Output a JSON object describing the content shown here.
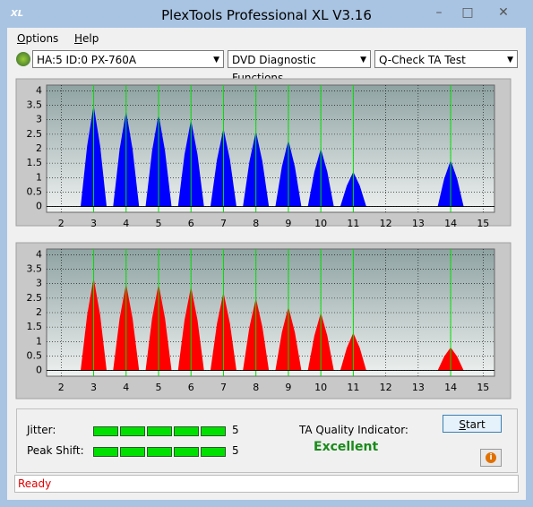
{
  "window": {
    "title": "PlexTools Professional XL V3.16",
    "icon": "XL"
  },
  "menu": [
    "Options",
    "Help"
  ],
  "toolbar": {
    "drive": "HA:5 ID:0  PX-760A",
    "function": "DVD Diagnostic Functions",
    "test": "Q-Check TA Test"
  },
  "chart_data": [
    {
      "type": "area",
      "color": "#0000ff",
      "x": [
        2.6,
        2.8,
        3,
        3.2,
        3.4,
        3.6,
        3.8,
        4,
        4.2,
        4.4,
        4.6,
        4.8,
        5,
        5.2,
        5.4,
        5.6,
        5.8,
        6,
        6.2,
        6.4,
        6.6,
        6.8,
        7,
        7.2,
        7.4,
        7.6,
        7.8,
        8,
        8.2,
        8.4,
        8.6,
        8.8,
        9,
        9.2,
        9.4,
        9.6,
        9.8,
        10,
        10.2,
        10.4,
        10.6,
        10.8,
        11,
        11.2,
        11.4,
        13.6,
        13.8,
        14,
        14.2,
        14.4
      ],
      "values": [
        0,
        2.1,
        3.5,
        2.1,
        0,
        0,
        1.98,
        3.3,
        1.98,
        0,
        0,
        1.92,
        3.2,
        1.92,
        0,
        0,
        1.8,
        3.0,
        1.8,
        0,
        0,
        1.62,
        2.7,
        1.62,
        0,
        0,
        1.56,
        2.6,
        1.56,
        0,
        0,
        1.38,
        2.3,
        1.38,
        0,
        0,
        1.2,
        2.0,
        1.2,
        0,
        0,
        0.72,
        1.2,
        0.72,
        0,
        0,
        0.96,
        1.6,
        0.96,
        0
      ],
      "xlim": [
        1.55,
        15.35
      ],
      "ylim": [
        -0.2,
        4.2
      ],
      "xticks": [
        2,
        3,
        4,
        5,
        6,
        7,
        8,
        9,
        10,
        11,
        12,
        13,
        14,
        15
      ],
      "yticks": [
        0,
        0.5,
        1,
        1.5,
        2,
        2.5,
        3,
        3.5,
        4
      ],
      "markers": [
        3,
        4,
        5,
        6,
        7,
        8,
        9,
        10,
        11,
        14
      ],
      "marker_color": "#00e000",
      "grid": true
    },
    {
      "type": "area",
      "color": "#ff0000",
      "x": [
        2.6,
        2.8,
        3,
        3.2,
        3.4,
        3.6,
        3.8,
        4,
        4.2,
        4.4,
        4.6,
        4.8,
        5,
        5.2,
        5.4,
        5.6,
        5.8,
        6,
        6.2,
        6.4,
        6.6,
        6.8,
        7,
        7.2,
        7.4,
        7.6,
        7.8,
        8,
        8.2,
        8.4,
        8.6,
        8.8,
        9,
        9.2,
        9.4,
        9.6,
        9.8,
        10,
        10.2,
        10.4,
        10.6,
        10.8,
        11,
        11.2,
        11.4,
        13.6,
        13.8,
        14,
        14.2,
        14.4
      ],
      "values": [
        0,
        1.92,
        3.2,
        1.92,
        0,
        0,
        1.8,
        3.0,
        1.8,
        0,
        0,
        1.8,
        3.0,
        1.8,
        0,
        0,
        1.74,
        2.9,
        1.74,
        0,
        0,
        1.62,
        2.7,
        1.62,
        0,
        0,
        1.5,
        2.5,
        1.5,
        0,
        0,
        1.32,
        2.2,
        1.32,
        0,
        0,
        1.2,
        2.0,
        1.2,
        0,
        0,
        0.78,
        1.3,
        0.78,
        0,
        0,
        0.48,
        0.8,
        0.48,
        0
      ],
      "xlim": [
        1.55,
        15.35
      ],
      "ylim": [
        -0.2,
        4.2
      ],
      "xticks": [
        2,
        3,
        4,
        5,
        6,
        7,
        8,
        9,
        10,
        11,
        12,
        13,
        14,
        15
      ],
      "yticks": [
        0,
        0.5,
        1,
        1.5,
        2,
        2.5,
        3,
        3.5,
        4
      ],
      "markers": [
        3,
        4,
        5,
        6,
        7,
        8,
        9,
        10,
        11,
        14
      ],
      "marker_color": "#00e000",
      "grid": true
    }
  ],
  "results": {
    "jitter": {
      "label": "Jitter:",
      "value": 5
    },
    "peak_shift": {
      "label": "Peak Shift:",
      "value": 5
    },
    "ta_label": "TA Quality Indicator:",
    "ta_value": "Excellent",
    "start": "Start"
  },
  "status": "Ready"
}
